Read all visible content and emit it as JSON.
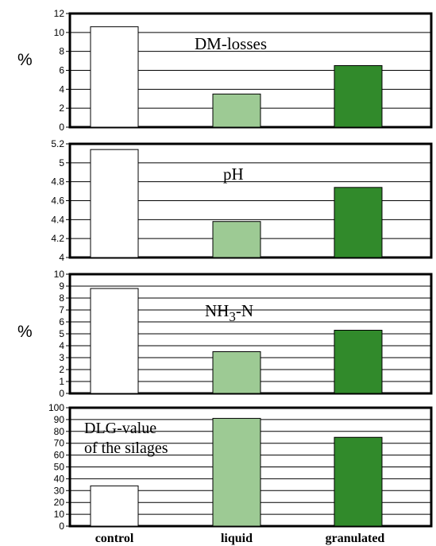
{
  "colors": {
    "control": "#ffffff",
    "liquid": "#9dca94",
    "granulated": "#318a2b",
    "axis": "#000000"
  },
  "categories": [
    "control",
    "liquid",
    "granulated"
  ],
  "units": {
    "panel_0": "%",
    "panel_2": "%"
  },
  "chart_data": [
    {
      "type": "bar",
      "title": "DM-losses",
      "categories": [
        "control",
        "liquid",
        "granulated"
      ],
      "values": [
        10.6,
        3.5,
        6.5
      ],
      "ylim": [
        0,
        12
      ],
      "yticks": [
        "0",
        "2",
        "4",
        "6",
        "8",
        "10",
        "12"
      ],
      "ylabel": "%",
      "grid": true
    },
    {
      "type": "bar",
      "title": "pH",
      "categories": [
        "control",
        "liquid",
        "granulated"
      ],
      "values": [
        5.14,
        4.38,
        4.74
      ],
      "ylim": [
        4,
        5.2
      ],
      "yticks": [
        "4",
        "4.2",
        "4.4",
        "4.6",
        "4.8",
        "5",
        "5.2"
      ],
      "ylabel": "",
      "grid": true
    },
    {
      "type": "bar",
      "title": "NH3-N",
      "title_main": "NH",
      "title_sub": "3",
      "title_tail": "-N",
      "categories": [
        "control",
        "liquid",
        "granulated"
      ],
      "values": [
        8.8,
        3.5,
        5.3
      ],
      "ylim": [
        0,
        10
      ],
      "yticks": [
        "0",
        "1",
        "2",
        "3",
        "4",
        "5",
        "6",
        "7",
        "8",
        "9",
        "10"
      ],
      "ylabel": "%",
      "grid": true
    },
    {
      "type": "bar",
      "title": "DLG-value of the silages",
      "title_line1": "DLG-value",
      "title_line2": "of the silages",
      "categories": [
        "control",
        "liquid",
        "granulated"
      ],
      "values": [
        34,
        91,
        75
      ],
      "ylim": [
        0,
        100
      ],
      "yticks": [
        "0",
        "10",
        "20",
        "30",
        "40",
        "50",
        "60",
        "70",
        "80",
        "90",
        "100"
      ],
      "ylabel": "",
      "grid": true
    }
  ]
}
